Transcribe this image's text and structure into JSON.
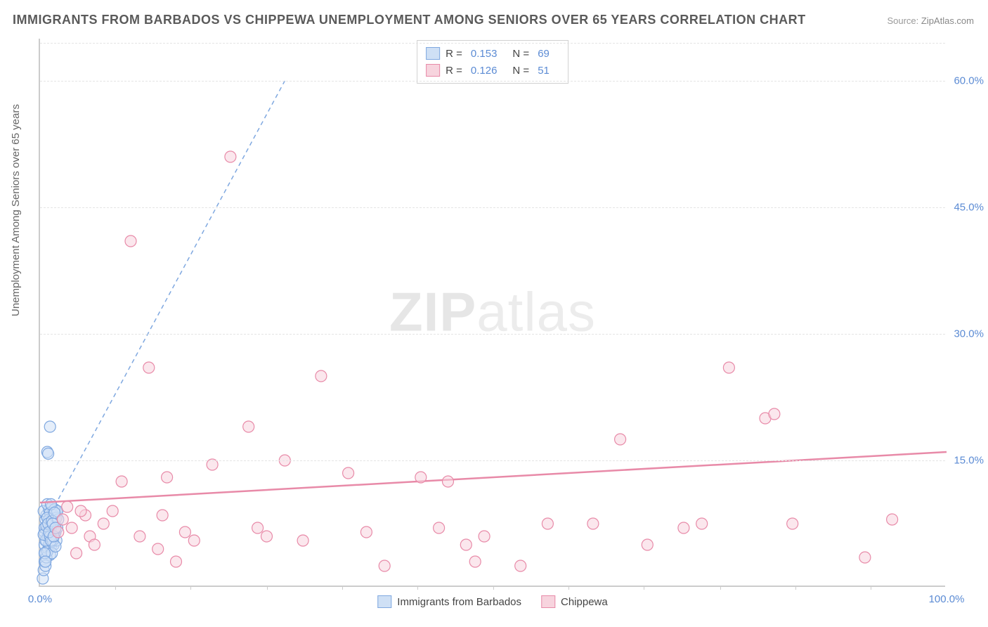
{
  "title": "IMMIGRANTS FROM BARBADOS VS CHIPPEWA UNEMPLOYMENT AMONG SENIORS OVER 65 YEARS CORRELATION CHART",
  "source_label": "Source: ",
  "source_value": "ZipAtlas.com",
  "ylabel": "Unemployment Among Seniors over 65 years",
  "watermark1": "ZIP",
  "watermark2": "atlas",
  "chart": {
    "type": "scatter",
    "xlim": [
      0,
      100
    ],
    "ylim": [
      0,
      65
    ],
    "y_ticks": [
      15.0,
      30.0,
      45.0,
      60.0
    ],
    "y_tick_labels": [
      "15.0%",
      "30.0%",
      "45.0%",
      "60.0%"
    ],
    "x_major_ticks": [
      0,
      100
    ],
    "x_major_labels": [
      "0.0%",
      "100.0%"
    ],
    "x_minor_ticks": [
      8.3,
      16.6,
      25,
      33.3,
      41.6,
      50,
      58.3,
      66.6,
      75,
      83.3,
      91.6
    ],
    "grid_color": "#e4e4e4",
    "axis_color": "#cccccc",
    "background_color": "#ffffff",
    "label_color": "#5b8bd4",
    "marker_radius": 8,
    "marker_opacity": 0.55,
    "series": [
      {
        "name": "Immigrants from Barbados",
        "stroke": "#7fa8e0",
        "fill": "#cfe0f5",
        "R": "0.153",
        "N": "69",
        "trend": {
          "x1": 0,
          "y1": 6.4,
          "x2": 27,
          "y2": 60,
          "dashed": true,
          "width": 1.5
        },
        "points": [
          [
            0.3,
            1.0
          ],
          [
            0.4,
            2.0
          ],
          [
            0.5,
            3.0
          ],
          [
            0.6,
            4.0
          ],
          [
            0.5,
            5.0
          ],
          [
            0.7,
            5.5
          ],
          [
            0.8,
            6.0
          ],
          [
            0.5,
            6.5
          ],
          [
            0.9,
            7.0
          ],
          [
            1.0,
            7.5
          ],
          [
            0.6,
            8.0
          ],
          [
            1.1,
            6.8
          ],
          [
            1.2,
            7.8
          ],
          [
            0.7,
            8.5
          ],
          [
            1.3,
            5.8
          ],
          [
            0.4,
            9.0
          ],
          [
            1.0,
            9.2
          ],
          [
            1.4,
            8.4
          ],
          [
            0.8,
            9.8
          ],
          [
            1.5,
            7.2
          ],
          [
            0.9,
            4.5
          ],
          [
            1.1,
            3.8
          ],
          [
            1.6,
            6.2
          ],
          [
            0.6,
            2.5
          ],
          [
            1.7,
            8.0
          ],
          [
            1.2,
            4.8
          ],
          [
            0.5,
            7.0
          ],
          [
            1.8,
            9.0
          ],
          [
            0.7,
            3.5
          ],
          [
            1.0,
            5.0
          ],
          [
            1.3,
            9.5
          ],
          [
            0.8,
            4.2
          ],
          [
            1.4,
            6.8
          ],
          [
            1.5,
            5.0
          ],
          [
            0.9,
            6.0
          ],
          [
            1.6,
            7.5
          ],
          [
            1.1,
            8.8
          ],
          [
            0.6,
            5.5
          ],
          [
            1.7,
            6.5
          ],
          [
            1.2,
            7.0
          ],
          [
            0.4,
            6.2
          ],
          [
            1.8,
            5.5
          ],
          [
            0.7,
            7.2
          ],
          [
            1.0,
            8.0
          ],
          [
            1.3,
            4.0
          ],
          [
            1.9,
            7.0
          ],
          [
            1.5,
            8.5
          ],
          [
            1.1,
            6.0
          ],
          [
            0.8,
            8.2
          ],
          [
            1.4,
            5.5
          ],
          [
            0.5,
            4.0
          ],
          [
            1.6,
            9.2
          ],
          [
            1.2,
            5.5
          ],
          [
            1.7,
            4.8
          ],
          [
            0.9,
            7.5
          ],
          [
            1.8,
            8.2
          ],
          [
            1.0,
            6.5
          ],
          [
            1.3,
            7.8
          ],
          [
            0.6,
            3.0
          ],
          [
            1.5,
            6.0
          ],
          [
            2.0,
            8.0
          ],
          [
            1.9,
            9.0
          ],
          [
            1.4,
            7.5
          ],
          [
            1.7,
            7.0
          ],
          [
            1.1,
            19.0
          ],
          [
            0.8,
            16.0
          ],
          [
            0.9,
            15.8
          ],
          [
            1.2,
            9.8
          ],
          [
            1.6,
            8.8
          ]
        ]
      },
      {
        "name": "Chippewa",
        "stroke": "#e88aa8",
        "fill": "#f7d4de",
        "R": "0.126",
        "N": "51",
        "trend": {
          "x1": 0,
          "y1": 10.0,
          "x2": 100,
          "y2": 16.0,
          "dashed": false,
          "width": 2.5
        },
        "points": [
          [
            2.0,
            6.5
          ],
          [
            2.5,
            8.0
          ],
          [
            3.5,
            7.0
          ],
          [
            4.0,
            4.0
          ],
          [
            5.0,
            8.5
          ],
          [
            5.5,
            6.0
          ],
          [
            6.0,
            5.0
          ],
          [
            7.0,
            7.5
          ],
          [
            8.0,
            9.0
          ],
          [
            9.0,
            12.5
          ],
          [
            10.0,
            41.0
          ],
          [
            11.0,
            6.0
          ],
          [
            12.0,
            26.0
          ],
          [
            13.0,
            4.5
          ],
          [
            13.5,
            8.5
          ],
          [
            14.0,
            13.0
          ],
          [
            15.0,
            3.0
          ],
          [
            16.0,
            6.5
          ],
          [
            17.0,
            5.5
          ],
          [
            19.0,
            14.5
          ],
          [
            21.0,
            51.0
          ],
          [
            23.0,
            19.0
          ],
          [
            24.0,
            7.0
          ],
          [
            25.0,
            6.0
          ],
          [
            27.0,
            15.0
          ],
          [
            29.0,
            5.5
          ],
          [
            31.0,
            25.0
          ],
          [
            34.0,
            13.5
          ],
          [
            36.0,
            6.5
          ],
          [
            38.0,
            2.5
          ],
          [
            42.0,
            13.0
          ],
          [
            44.0,
            7.0
          ],
          [
            45.0,
            12.5
          ],
          [
            47.0,
            5.0
          ],
          [
            48.0,
            3.0
          ],
          [
            49.0,
            6.0
          ],
          [
            53.0,
            2.5
          ],
          [
            56.0,
            7.5
          ],
          [
            61.0,
            7.5
          ],
          [
            64.0,
            17.5
          ],
          [
            67.0,
            5.0
          ],
          [
            71.0,
            7.0
          ],
          [
            73.0,
            7.5
          ],
          [
            76.0,
            26.0
          ],
          [
            80.0,
            20.0
          ],
          [
            81.0,
            20.5
          ],
          [
            83.0,
            7.5
          ],
          [
            91.0,
            3.5
          ],
          [
            94.0,
            8.0
          ],
          [
            3.0,
            9.5
          ],
          [
            4.5,
            9.0
          ]
        ]
      }
    ]
  },
  "legend_top": {
    "stat1_label": "R =",
    "stat2_label": "N ="
  },
  "legend_bottom": [
    {
      "label": "Immigrants from Barbados",
      "stroke": "#7fa8e0",
      "fill": "#cfe0f5"
    },
    {
      "label": "Chippewa",
      "stroke": "#e88aa8",
      "fill": "#f7d4de"
    }
  ]
}
